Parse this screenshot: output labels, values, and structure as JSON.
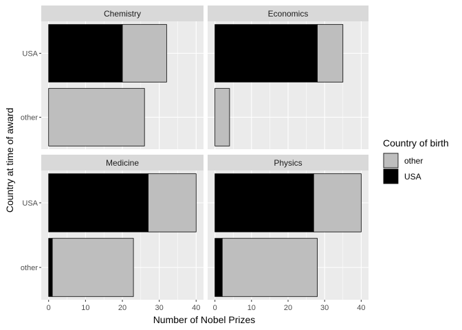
{
  "chart_data": {
    "type": "bar",
    "orientation": "horizontal",
    "stacked": true,
    "facets": [
      "Chemistry",
      "Economics",
      "Medicine",
      "Physics"
    ],
    "categories": [
      "USA",
      "other"
    ],
    "xlabel": "Number of Nobel Prizes",
    "ylabel": "Country at time of award",
    "xticks": [
      0,
      10,
      20,
      30,
      40
    ],
    "xlim": [
      -2,
      42
    ],
    "legend": {
      "title": "Country of birth",
      "position": "right",
      "entries": [
        {
          "name": "other",
          "color": "#BEBEBE"
        },
        {
          "name": "USA",
          "color": "#000000"
        }
      ]
    },
    "panels": [
      {
        "facet": "Chemistry",
        "bars": [
          {
            "category": "USA",
            "USA": 20,
            "other": 12
          },
          {
            "category": "other",
            "USA": 0,
            "other": 26
          }
        ]
      },
      {
        "facet": "Economics",
        "bars": [
          {
            "category": "USA",
            "USA": 28,
            "other": 7
          },
          {
            "category": "other",
            "USA": 0,
            "other": 4
          }
        ]
      },
      {
        "facet": "Medicine",
        "bars": [
          {
            "category": "USA",
            "USA": 27,
            "other": 13
          },
          {
            "category": "other",
            "USA": 1,
            "other": 22
          }
        ]
      },
      {
        "facet": "Physics",
        "bars": [
          {
            "category": "USA",
            "USA": 27,
            "other": 13
          },
          {
            "category": "other",
            "USA": 2,
            "other": 26
          }
        ]
      }
    ],
    "colors": {
      "panel_background": "#EBEBEB",
      "grid": "#FFFFFF",
      "strip_background": "#D9D9D9",
      "bar_outline": "#000000"
    }
  }
}
